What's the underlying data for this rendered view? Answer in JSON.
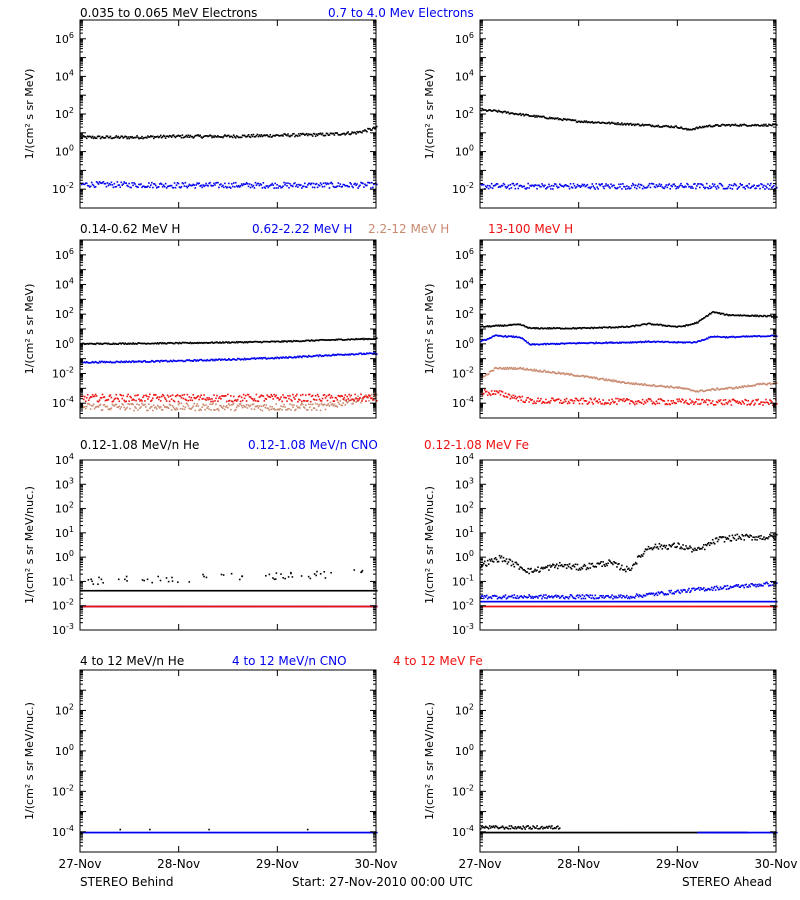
{
  "footer": {
    "left": "STEREO Behind",
    "center": "Start: 27-Nov-2010 00:00 UTC",
    "right": "STEREO Ahead",
    "xticks": [
      "27-Nov",
      "28-Nov",
      "29-Nov",
      "30-Nov"
    ]
  },
  "colors": {
    "black": "#000000",
    "blue": "#0000ee",
    "tan": "#c98a70",
    "red": "#ee1111"
  },
  "chart_data": [
    {
      "id": "electrons",
      "type": "scatter",
      "ylabel": "1/(cm² s sr MeV)",
      "legend": [
        {
          "text": "0.035 to 0.065 MeV Electrons",
          "color": "black"
        },
        {
          "text": "0.7 to 4.0 Mev Electrons",
          "color": "blue"
        }
      ],
      "yscale": "log",
      "ylim_exp": [
        -3,
        7
      ],
      "yticks": [
        {
          "exp": -2,
          "label": "10-2"
        },
        {
          "exp": 0,
          "label": "100"
        },
        {
          "exp": 2,
          "label": "102"
        },
        {
          "exp": 4,
          "label": "104"
        },
        {
          "exp": 6,
          "label": "106"
        }
      ],
      "x_days": [
        0,
        3
      ],
      "panels": {
        "behind": [
          {
            "color": "black",
            "x": [
              0,
              0.5,
              1.0,
              1.5,
              2.0,
              2.5,
              2.8,
              3.0
            ],
            "log10y": [
              0.8,
              0.8,
              0.85,
              0.85,
              0.9,
              0.95,
              1.05,
              1.3
            ],
            "scatter": 0.08
          },
          {
            "color": "blue",
            "x": [
              0,
              1.0,
              2.0,
              3.0
            ],
            "log10y": [
              -1.7,
              -1.75,
              -1.75,
              -1.75
            ],
            "scatter": 0.15
          }
        ],
        "ahead": [
          {
            "color": "black",
            "x": [
              0,
              0.15,
              0.5,
              1.0,
              1.5,
              2.0,
              2.1,
              2.3,
              2.5,
              3.0
            ],
            "log10y": [
              2.25,
              2.2,
              1.95,
              1.65,
              1.5,
              1.35,
              1.2,
              1.4,
              1.45,
              1.45
            ],
            "scatter": 0.05
          },
          {
            "color": "blue",
            "x": [
              0,
              1.0,
              2.0,
              3.0
            ],
            "log10y": [
              -1.8,
              -1.8,
              -1.8,
              -1.8
            ],
            "scatter": 0.15
          }
        ]
      }
    },
    {
      "id": "protons",
      "type": "scatter",
      "ylabel": "1/(cm² s sr MeV)",
      "legend": [
        {
          "text": "0.14-0.62 MeV H",
          "color": "black"
        },
        {
          "text": "0.62-2.22 MeV H",
          "color": "blue"
        },
        {
          "text": "2.2-12 MeV H",
          "color": "tan"
        },
        {
          "text": "13-100 MeV H",
          "color": "red"
        }
      ],
      "yscale": "log",
      "ylim_exp": [
        -5,
        7
      ],
      "yticks": [
        {
          "exp": -4,
          "label": "10-4"
        },
        {
          "exp": -2,
          "label": "10-2"
        },
        {
          "exp": 0,
          "label": "100"
        },
        {
          "exp": 2,
          "label": "102"
        },
        {
          "exp": 4,
          "label": "104"
        },
        {
          "exp": 6,
          "label": "106"
        }
      ],
      "x_days": [
        0,
        3
      ],
      "panels": {
        "behind": [
          {
            "color": "black",
            "x": [
              0,
              1.0,
              2.0,
              2.7,
              3.0
            ],
            "log10y": [
              0.05,
              0.1,
              0.2,
              0.35,
              0.4
            ],
            "scatter": 0.04
          },
          {
            "color": "blue",
            "x": [
              0,
              1.0,
              2.0,
              2.7,
              3.0
            ],
            "log10y": [
              -1.2,
              -1.1,
              -0.9,
              -0.65,
              -0.6
            ],
            "scatter": 0.05
          },
          {
            "color": "tan",
            "x": [
              0,
              2.5,
              2.7,
              3.0
            ],
            "log10y": [
              -4.2,
              -4.2,
              -3.8,
              -3.5
            ],
            "scatter": 0.25
          },
          {
            "color": "red",
            "x": [
              0,
              3.0
            ],
            "log10y": [
              -3.6,
              -3.6
            ],
            "scatter": 0.25
          }
        ],
        "ahead": [
          {
            "color": "black",
            "x": [
              0,
              0.4,
              0.5,
              1.0,
              1.5,
              1.7,
              2.0,
              2.1,
              2.2,
              2.35,
              2.5,
              3.0
            ],
            "log10y": [
              1.2,
              1.35,
              1.1,
              1.1,
              1.2,
              1.4,
              1.2,
              1.3,
              1.5,
              2.2,
              2.0,
              1.9
            ],
            "scatter": 0.04
          },
          {
            "color": "blue",
            "x": [
              0,
              0.15,
              0.4,
              0.5,
              1.0,
              1.5,
              1.7,
              2.0,
              2.15,
              2.2,
              2.35,
              2.5,
              3.0
            ],
            "log10y": [
              0.2,
              0.6,
              0.5,
              0.0,
              0.1,
              0.15,
              0.2,
              0.15,
              0.15,
              0.2,
              0.55,
              0.5,
              0.6
            ],
            "scatter": 0.04
          },
          {
            "color": "tan",
            "x": [
              0,
              0.15,
              0.4,
              1.0,
              1.5,
              2.0,
              2.2,
              2.4,
              2.6,
              2.8,
              3.0
            ],
            "log10y": [
              -2.3,
              -1.6,
              -1.6,
              -2.1,
              -2.6,
              -2.9,
              -3.15,
              -3.0,
              -2.9,
              -2.7,
              -2.6
            ],
            "scatter": 0.06
          },
          {
            "color": "red",
            "x": [
              0,
              0.2,
              0.5,
              3.0
            ],
            "log10y": [
              -3.2,
              -3.3,
              -3.8,
              -3.9
            ],
            "scatter": 0.2
          }
        ]
      }
    },
    {
      "id": "heavy-low",
      "type": "scatter",
      "ylabel": "1/(cm² s sr MeV/nuc.)",
      "legend": [
        {
          "text": "0.12-1.08 MeV/n He",
          "color": "black"
        },
        {
          "text": "0.12-1.08 MeV/n CNO",
          "color": "blue"
        },
        {
          "text": "0.12-1.08 MeV Fe",
          "color": "red"
        }
      ],
      "yscale": "log",
      "ylim_exp": [
        -3,
        4
      ],
      "yticks": [
        {
          "exp": -3,
          "label": "10-3"
        },
        {
          "exp": -2,
          "label": "10-2"
        },
        {
          "exp": -1,
          "label": "10-1"
        },
        {
          "exp": 0,
          "label": "100"
        },
        {
          "exp": 1,
          "label": "101"
        },
        {
          "exp": 2,
          "label": "102"
        },
        {
          "exp": 3,
          "label": "103"
        },
        {
          "exp": 4,
          "label": "104"
        }
      ],
      "x_days": [
        0,
        3
      ],
      "panels": {
        "behind": [
          {
            "color": "black",
            "x": [
              0,
              3.0
            ],
            "log10y": [
              -1.35,
              -1.35
            ],
            "scatter": 0.0
          },
          {
            "color": "black",
            "x": [
              0,
              1.0,
              2.0,
              3.0
            ],
            "log10y": [
              -0.95,
              -0.85,
              -0.75,
              -0.6
            ],
            "scatter": 0.15,
            "sparse": true
          },
          {
            "color": "blue",
            "x": [
              0,
              3.0
            ],
            "log10y": [
              -2.0,
              -2.0
            ],
            "scatter": 0.0
          },
          {
            "color": "red",
            "x": [
              0,
              3.0
            ],
            "log10y": [
              -2.0,
              -2.0
            ],
            "scatter": 0.0
          }
        ],
        "ahead": [
          {
            "color": "black",
            "x": [
              0,
              0.2,
              0.5,
              0.8,
              1.0,
              1.3,
              1.5,
              1.7,
              2.0,
              2.2,
              2.4,
              2.6,
              3.0
            ],
            "log10y": [
              -0.3,
              0.0,
              -0.55,
              -0.3,
              -0.4,
              -0.2,
              -0.5,
              0.45,
              0.5,
              0.3,
              0.75,
              0.85,
              0.85
            ],
            "scatter": 0.12
          },
          {
            "color": "blue",
            "x": [
              0,
              1.5,
              2.2,
              3.0
            ],
            "log10y": [
              -1.6,
              -1.6,
              -1.3,
              -1.05
            ],
            "scatter": 0.08
          },
          {
            "color": "blue",
            "x": [
              0,
              3.0
            ],
            "log10y": [
              -1.8,
              -1.8
            ],
            "scatter": 0.0
          },
          {
            "color": "red",
            "x": [
              0,
              3.0
            ],
            "log10y": [
              -2.0,
              -2.0
            ],
            "scatter": 0.0
          }
        ]
      }
    },
    {
      "id": "heavy-high",
      "type": "scatter",
      "ylabel": "1/(cm² s sr MeV/nuc.)",
      "legend": [
        {
          "text": "4 to 12 MeV/n He",
          "color": "black"
        },
        {
          "text": "4 to 12 MeV/n CNO",
          "color": "blue"
        },
        {
          "text": "4 to 12 MeV Fe",
          "color": "red"
        }
      ],
      "yscale": "log",
      "ylim_exp": [
        -5,
        4
      ],
      "yticks": [
        {
          "exp": -4,
          "label": "10-4"
        },
        {
          "exp": -2,
          "label": "10-2"
        },
        {
          "exp": 0,
          "label": "100"
        },
        {
          "exp": 2,
          "label": "102"
        }
      ],
      "x_days": [
        0,
        3
      ],
      "panels": {
        "behind": [
          {
            "color": "blue",
            "x": [
              0,
              3.0
            ],
            "log10y": [
              -4.0,
              -4.0
            ],
            "scatter": 0.0
          },
          {
            "color": "black",
            "x": [
              0.4,
              0.7,
              1.3,
              2.3
            ],
            "log10y": [
              -3.85,
              -3.85,
              -3.85,
              -3.85
            ],
            "scatter": 0.0,
            "sparse": true
          }
        ],
        "ahead": [
          {
            "color": "black",
            "x": [
              0,
              0.8
            ],
            "log10y": [
              -3.75,
              -3.75
            ],
            "scatter": 0.08
          },
          {
            "color": "black",
            "x": [
              0,
              2.7
            ],
            "log10y": [
              -4.0,
              -4.0
            ],
            "scatter": 0.0
          },
          {
            "color": "blue",
            "x": [
              2.2,
              3.0
            ],
            "log10y": [
              -4.0,
              -4.0
            ],
            "scatter": 0.0
          }
        ]
      }
    }
  ]
}
